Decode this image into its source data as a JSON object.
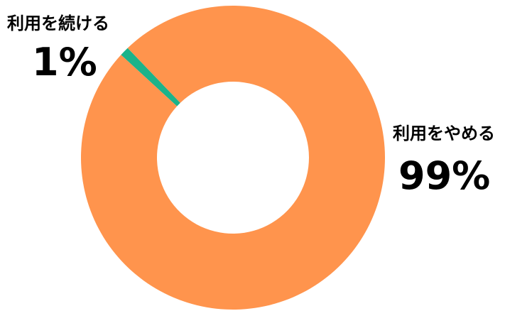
{
  "chart_data": {
    "type": "pie",
    "donut": true,
    "categories": [
      "利用を続ける",
      "利用をやめる"
    ],
    "values": [
      1,
      99
    ],
    "value_labels": [
      "1%",
      "99%"
    ],
    "colors": [
      "#1bb38a",
      "#ff944d"
    ],
    "background_color": "#ffffff",
    "legend": "none"
  }
}
